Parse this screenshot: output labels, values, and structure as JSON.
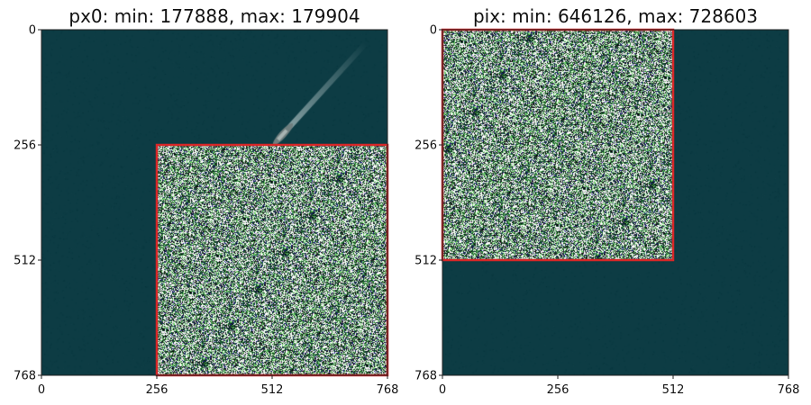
{
  "chart_data": [
    {
      "type": "heatmap",
      "title": "px0: min: 177888, max: 179904",
      "xlabel": "",
      "ylabel": "",
      "xlim": [
        0,
        768
      ],
      "ylim": [
        768,
        0
      ],
      "xticks": [
        0,
        256,
        512,
        768
      ],
      "yticks": [
        0,
        256,
        512,
        768
      ],
      "xtick_labels": [
        "0",
        "256",
        "512",
        "768"
      ],
      "ytick_labels": [
        "0",
        "256",
        "512",
        "768"
      ],
      "background": "aerial sea image with ship wake",
      "patch": {
        "x": [
          256,
          768
        ],
        "y": [
          256,
          768
        ],
        "content": "noise"
      },
      "highlight_box": {
        "x": [
          256,
          768
        ],
        "y": [
          256,
          768
        ],
        "color": "#d62728"
      },
      "ship": {
        "x": [
          520,
          720
        ],
        "y": [
          30,
          250
        ]
      }
    },
    {
      "type": "heatmap",
      "title": "pix: min: 646126, max: 728603",
      "xlabel": "",
      "ylabel": "",
      "xlim": [
        0,
        768
      ],
      "ylim": [
        768,
        0
      ],
      "xticks": [
        0,
        256,
        512,
        768
      ],
      "yticks": [
        0,
        256,
        512,
        768
      ],
      "xtick_labels": [
        "0",
        "256",
        "512",
        "768"
      ],
      "ytick_labels": [
        "0",
        "256",
        "512",
        "768"
      ],
      "background": "uniform sea",
      "patch": {
        "x": [
          0,
          512
        ],
        "y": [
          0,
          512
        ],
        "content": "noise"
      },
      "highlight_box": {
        "x": [
          0,
          512
        ],
        "y": [
          0,
          512
        ],
        "color": "#d62728"
      }
    }
  ],
  "colors": {
    "sea": "#0d3c44",
    "box": "#d62728",
    "noise_palette": [
      "#ffffff",
      "#0a2a2a",
      "#1e6b2e",
      "#6fd36a",
      "#1a1a8a",
      "#c0a0c8",
      "#2b2b2b",
      "#9ad29a",
      "#000000"
    ]
  }
}
